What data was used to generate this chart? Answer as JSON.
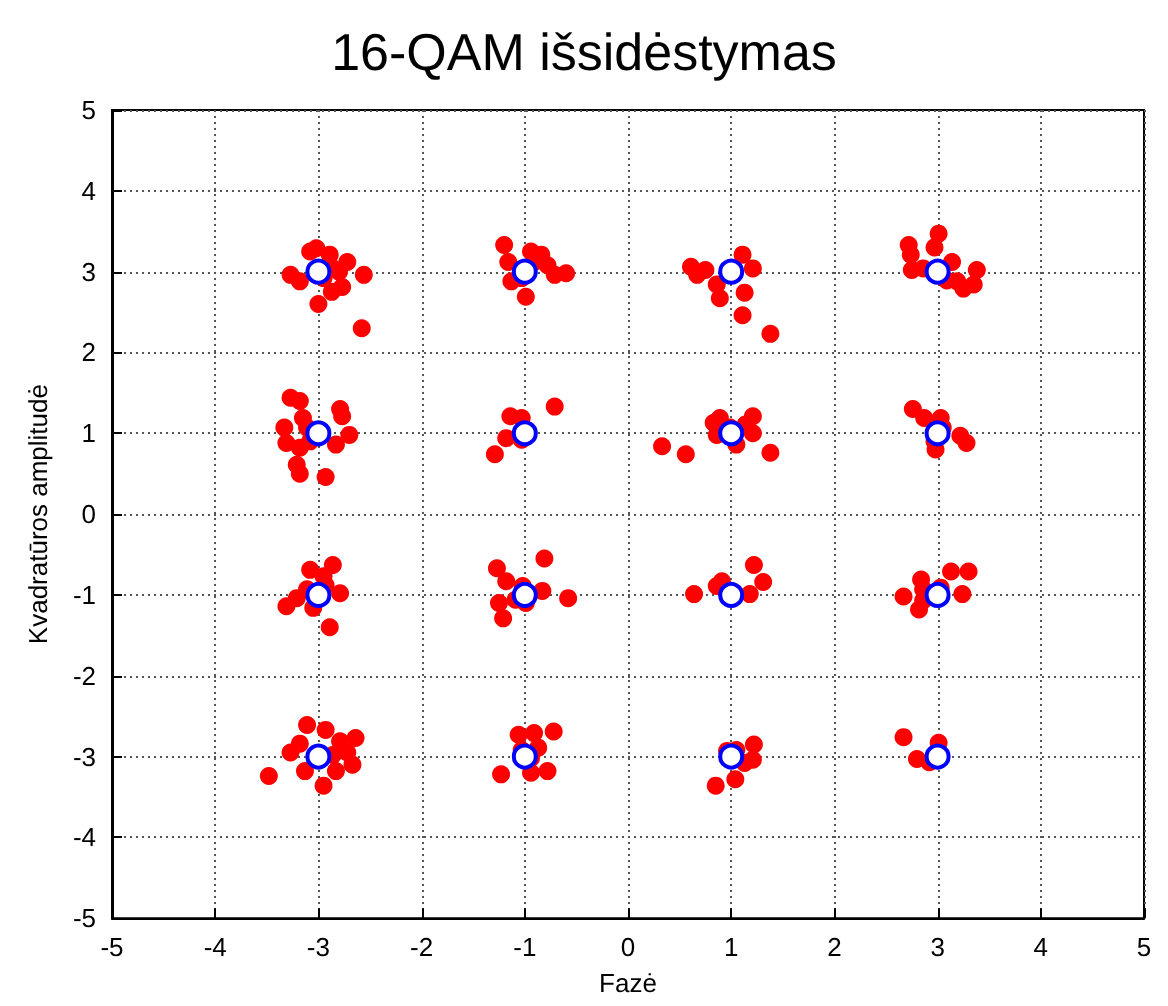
{
  "chart_data": {
    "type": "scatter",
    "title": "16-QAM išsidėstymas",
    "xlabel": "Fazė",
    "ylabel": "Kvadratūros amplitudė",
    "xlim": [
      -5,
      5
    ],
    "xticks": [
      -5,
      -4,
      -3,
      -2,
      -1,
      0,
      1,
      2,
      3,
      4,
      5
    ],
    "ylim": [
      -5,
      5
    ],
    "yticks": [
      -5,
      -4,
      -3,
      -2,
      -1,
      0,
      1,
      2,
      3,
      4,
      5
    ],
    "grid": true,
    "marker": "circle",
    "series": [
      {
        "color": "#ff0000",
        "x": [
          -3.02,
          -3.08,
          -2.89,
          -2.72,
          -3.27,
          -3.18,
          -2.95,
          -2.8,
          -2.77,
          -2.87,
          -2.56,
          -3.0,
          -2.58,
          -2.86,
          -1.2,
          -1.16,
          -0.94,
          -0.84,
          -0.78,
          -1.13,
          -1.03,
          -0.99,
          -0.71,
          -0.6,
          -0.91,
          0.61,
          0.67,
          0.75,
          0.86,
          0.89,
          1.11,
          1.21,
          1.13,
          1.11,
          1.38,
          2.72,
          2.74,
          2.97,
          3.01,
          3.14,
          2.75,
          2.86,
          3.09,
          3.25,
          3.35,
          3.38,
          3.19,
          -3.27,
          -3.18,
          -3.33,
          -3.31,
          -3.15,
          -3.11,
          -3.08,
          -3.18,
          -3.21,
          -3.18,
          -2.93,
          -2.79,
          -2.77,
          -2.7,
          -2.83,
          -1.14,
          -1.03,
          -1.18,
          -1.29,
          -1.03,
          -0.71,
          0.33,
          0.56,
          0.83,
          0.89,
          0.86,
          0.99,
          1.05,
          1.14,
          1.21,
          1.21,
          1.38,
          2.76,
          2.87,
          3.03,
          3.05,
          2.97,
          2.98,
          3.22,
          3.28,
          -3.08,
          -2.86,
          -2.95,
          -2.93,
          -3.21,
          -3.31,
          -3.05,
          -3.11,
          -2.79,
          -2.89,
          -1.27,
          -1.18,
          -1.25,
          -1.21,
          -1.09,
          -1.02,
          -0.83,
          -0.81,
          -0.58,
          -0.99,
          0.64,
          0.86,
          0.91,
          1.18,
          1.22,
          1.31,
          2.67,
          2.84,
          2.86,
          2.86,
          2.82,
          3.03,
          3.13,
          3.3,
          3.24,
          -3.11,
          -2.93,
          -3.18,
          -3.27,
          -3.13,
          -2.95,
          -2.83,
          -2.67,
          -2.64,
          -2.79,
          -2.86,
          -3.48,
          -2.72,
          -1.06,
          -0.91,
          -0.72,
          -1.03,
          -0.94,
          -0.87,
          -1.23,
          -0.94,
          -0.78,
          0.96,
          1.05,
          1.22,
          1.21,
          1.13,
          1.04,
          0.85,
          2.67,
          2.8,
          2.92,
          3.01
        ],
        "values": [
          3.29,
          3.25,
          3.21,
          3.12,
          2.96,
          2.88,
          2.92,
          3.0,
          2.81,
          2.75,
          2.96,
          2.6,
          2.3,
          3.04,
          3.33,
          3.12,
          3.25,
          3.21,
          3.08,
          2.88,
          2.92,
          2.69,
          2.96,
          2.98,
          3.12,
          3.06,
          2.96,
          3.02,
          2.84,
          2.67,
          3.21,
          3.04,
          2.74,
          2.46,
          2.23,
          3.33,
          3.21,
          3.3,
          3.47,
          3.12,
          3.02,
          3.04,
          2.89,
          2.79,
          2.84,
          3.02,
          2.88,
          1.44,
          1.4,
          1.07,
          0.88,
          1.19,
          1.07,
          0.9,
          0.82,
          0.61,
          0.5,
          0.46,
          1.3,
          1.21,
          0.98,
          0.86,
          1.21,
          1.19,
          0.94,
          0.74,
          0.92,
          1.33,
          0.84,
          0.74,
          1.13,
          1.19,
          0.98,
          1.07,
          0.86,
          1.11,
          1.21,
          1.0,
          0.76,
          1.3,
          1.19,
          1.19,
          1.07,
          0.9,
          0.8,
          0.97,
          0.88,
          -0.69,
          -0.63,
          -0.77,
          -0.88,
          -1.04,
          -1.14,
          -1.16,
          -0.93,
          -0.98,
          -1.4,
          -0.67,
          -0.83,
          -1.1,
          -1.29,
          -1.06,
          -0.89,
          -0.95,
          -0.55,
          -1.04,
          -1.1,
          -0.99,
          -0.89,
          -0.83,
          -0.99,
          -0.63,
          -0.84,
          -1.02,
          -0.81,
          -0.93,
          -1.07,
          -1.18,
          -0.91,
          -0.71,
          -0.71,
          -0.99,
          -2.61,
          -2.67,
          -2.84,
          -2.95,
          -3.18,
          -3.36,
          -3.18,
          -3.1,
          -2.77,
          -2.81,
          -2.98,
          -3.24,
          -2.95,
          -2.73,
          -2.71,
          -2.69,
          -2.92,
          -3.02,
          -2.89,
          -3.22,
          -3.2,
          -3.18,
          -2.93,
          -2.92,
          -2.85,
          -3.04,
          -3.08,
          -3.28,
          -3.36,
          -2.76,
          -3.03,
          -3.07,
          -2.83
        ]
      },
      {
        "color": "#0000ff",
        "x": [
          -3,
          -1,
          1,
          3,
          -3,
          -1,
          1,
          3,
          -3,
          -1,
          1,
          3,
          -3,
          -1,
          1,
          3
        ],
        "values": [
          3,
          3,
          3,
          3,
          1,
          1,
          1,
          1,
          -1,
          -1,
          -1,
          -1,
          -3,
          -3,
          -3,
          -3
        ]
      }
    ]
  }
}
